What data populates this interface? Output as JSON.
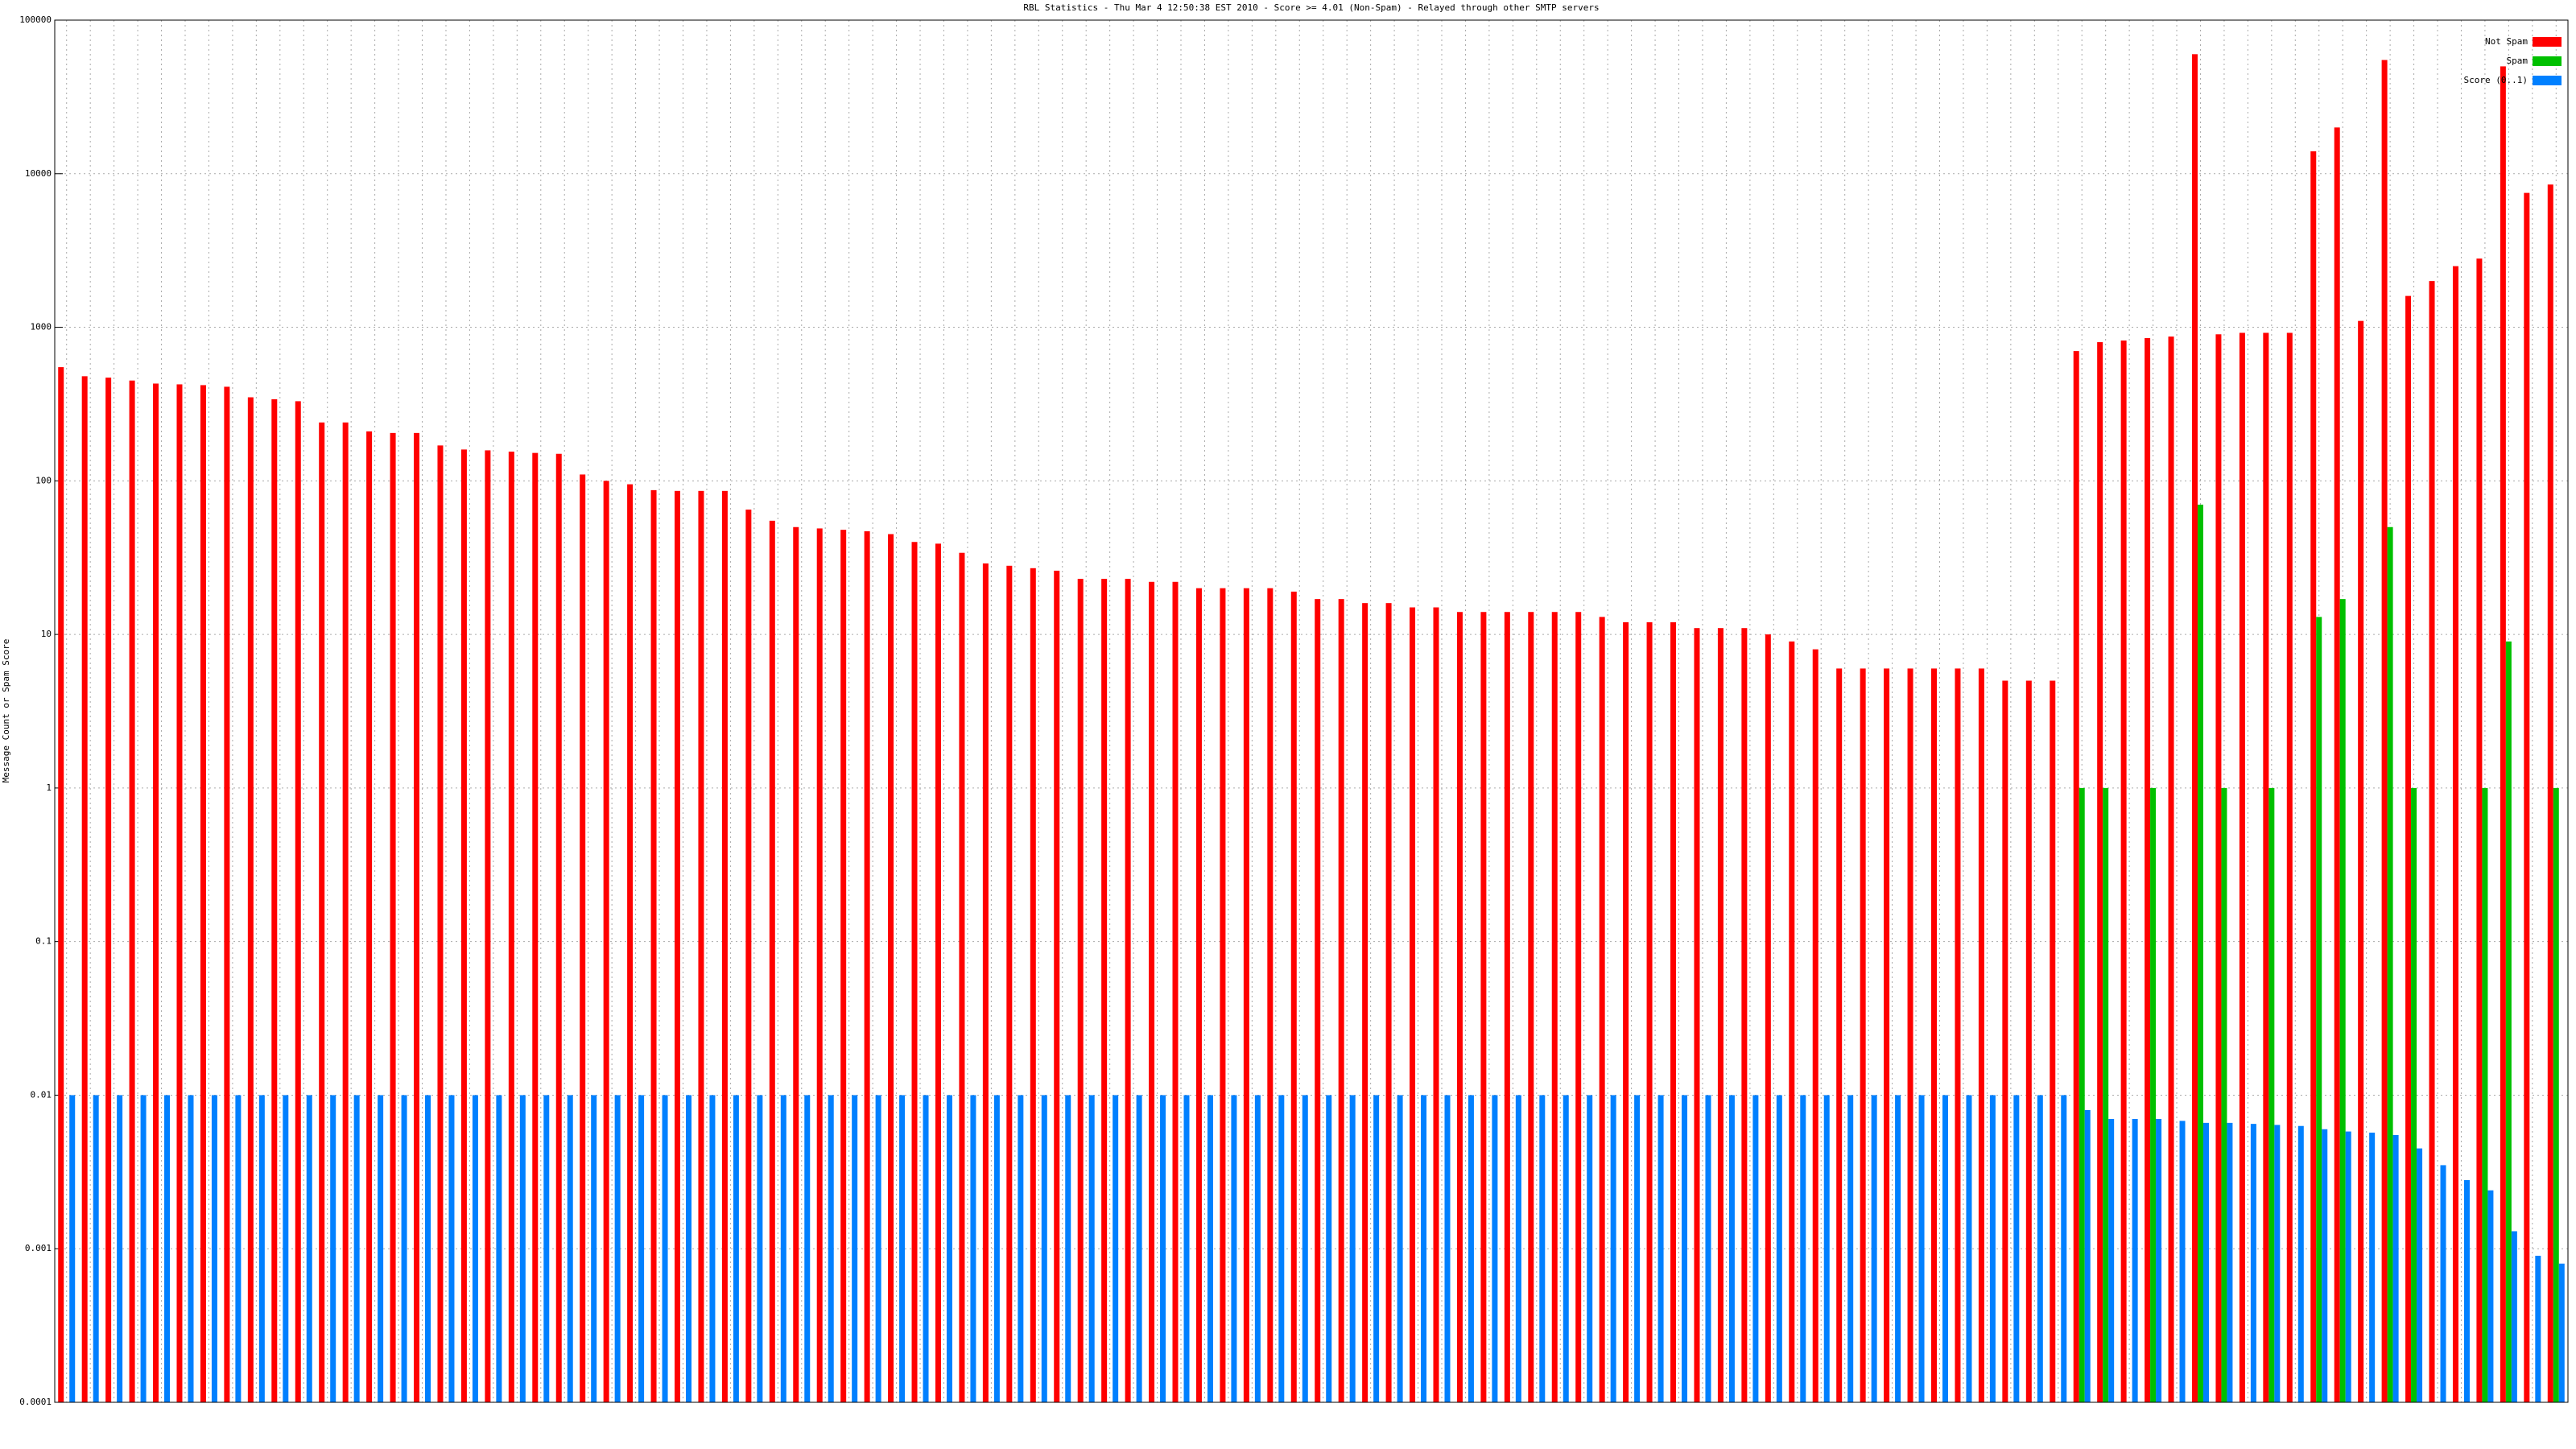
{
  "chart_data": {
    "type": "bar",
    "title": "RBL Statistics - Thu Mar  4 12:50:38 EST 2010 - Score >= 4.01 (Non-Spam) - Relayed through other SMTP servers",
    "ylabel": "Message Count or Spam Score",
    "log_scale": true,
    "grid": true,
    "legend": "top-right",
    "ylim": [
      0.0001,
      100000
    ],
    "yticks": [
      0.0001,
      0.001,
      0.01,
      0.1,
      1,
      10,
      100,
      1000,
      10000,
      100000
    ],
    "categories": [
      null,
      null,
      null,
      null,
      null,
      null,
      null,
      null,
      null,
      null,
      null,
      null,
      null,
      null,
      null,
      null,
      null,
      null,
      null,
      null,
      null,
      null,
      null,
      null,
      null,
      null,
      null,
      null,
      null,
      null,
      null,
      null,
      null,
      null,
      null,
      null,
      null,
      null,
      null,
      null,
      null,
      null,
      null,
      null,
      null,
      null,
      null,
      null,
      null,
      null,
      null,
      null,
      null,
      null,
      null,
      null,
      null,
      null,
      null,
      null,
      null,
      null,
      null,
      null,
      null,
      null,
      null,
      null,
      null,
      null,
      null,
      null,
      null,
      null,
      null,
      null,
      null,
      null,
      null,
      null,
      null,
      null,
      null,
      null,
      null,
      null,
      null,
      null,
      null,
      null,
      null,
      null,
      null,
      null,
      null,
      null,
      null,
      null,
      null,
      null,
      null,
      null,
      null,
      null,
      null,
      null
    ],
    "series": [
      {
        "name": "Not Spam",
        "color": "#ff0000",
        "values": [
          550,
          480,
          470,
          450,
          430,
          425,
          420,
          410,
          350,
          340,
          330,
          240,
          240,
          210,
          205,
          205,
          170,
          160,
          158,
          155,
          152,
          150,
          110,
          100,
          95,
          87,
          86,
          86,
          86,
          65,
          55,
          50,
          49,
          48,
          47,
          45,
          40,
          39,
          34,
          29,
          28,
          27,
          26,
          23,
          23,
          23,
          22,
          22,
          20,
          20,
          20,
          20,
          19,
          17,
          17,
          16,
          16,
          15,
          15,
          14,
          14,
          14,
          14,
          14,
          14,
          13,
          12,
          12,
          12,
          11,
          11,
          11,
          10,
          9,
          8,
          6,
          6,
          6,
          6,
          6,
          6,
          6,
          5,
          5,
          5,
          700,
          800,
          820,
          850,
          870,
          60000,
          900,
          920,
          920,
          920,
          14000,
          20000,
          1100,
          55000,
          1600,
          2000,
          2500,
          2800,
          50000,
          7500,
          8500
        ]
      },
      {
        "name": "Spam",
        "color": "#00c000",
        "values": [
          null,
          null,
          null,
          null,
          null,
          null,
          null,
          null,
          null,
          null,
          null,
          null,
          null,
          null,
          null,
          null,
          null,
          null,
          null,
          null,
          null,
          null,
          null,
          null,
          null,
          null,
          null,
          null,
          null,
          null,
          null,
          null,
          null,
          null,
          null,
          null,
          null,
          null,
          null,
          null,
          null,
          null,
          null,
          null,
          null,
          null,
          null,
          null,
          null,
          null,
          null,
          null,
          null,
          null,
          null,
          null,
          null,
          null,
          null,
          null,
          null,
          null,
          null,
          null,
          null,
          null,
          null,
          null,
          null,
          null,
          null,
          null,
          null,
          null,
          null,
          null,
          null,
          null,
          null,
          null,
          null,
          null,
          null,
          null,
          null,
          1,
          1,
          null,
          1,
          null,
          70,
          1,
          null,
          1,
          null,
          13,
          17,
          null,
          50,
          1,
          null,
          null,
          1,
          9,
          null,
          1
        ]
      },
      {
        "name": "Score (0..1)",
        "color": "#0080ff",
        "values": [
          0.01,
          0.01,
          0.01,
          0.01,
          0.01,
          0.01,
          0.01,
          0.01,
          0.01,
          0.01,
          0.01,
          0.01,
          0.01,
          0.01,
          0.01,
          0.01,
          0.01,
          0.01,
          0.01,
          0.01,
          0.01,
          0.01,
          0.01,
          0.01,
          0.01,
          0.01,
          0.01,
          0.01,
          0.01,
          0.01,
          0.01,
          0.01,
          0.01,
          0.01,
          0.01,
          0.01,
          0.01,
          0.01,
          0.01,
          0.01,
          0.01,
          0.01,
          0.01,
          0.01,
          0.01,
          0.01,
          0.01,
          0.01,
          0.01,
          0.01,
          0.01,
          0.01,
          0.01,
          0.01,
          0.01,
          0.01,
          0.01,
          0.01,
          0.01,
          0.01,
          0.01,
          0.01,
          0.01,
          0.01,
          0.01,
          0.01,
          0.01,
          0.01,
          0.01,
          0.01,
          0.01,
          0.01,
          0.01,
          0.01,
          0.01,
          0.01,
          0.01,
          0.01,
          0.01,
          0.01,
          0.01,
          0.01,
          0.01,
          0.01,
          0.01,
          0.008,
          0.007,
          0.007,
          0.007,
          0.0068,
          0.0066,
          0.0066,
          0.0065,
          0.0064,
          0.0063,
          0.006,
          0.0058,
          0.0057,
          0.0055,
          0.0045,
          0.0035,
          0.0028,
          0.0024,
          0.0013,
          0.0009,
          0.0008
        ]
      }
    ]
  }
}
